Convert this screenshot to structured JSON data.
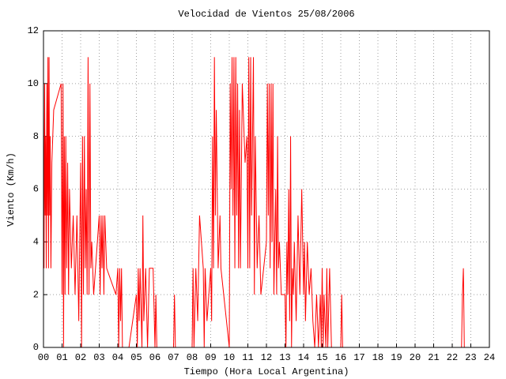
{
  "chart_data": {
    "type": "line",
    "title": "Velocidad de Vientos 25/08/2006",
    "xlabel": "Tiempo (Hora Local Argentina)",
    "ylabel": "Viento (Km/h)",
    "xlim": [
      0,
      24
    ],
    "ylim": [
      0,
      12
    ],
    "xticks": [
      {
        "value": 0,
        "label": "00"
      },
      {
        "value": 1,
        "label": "01"
      },
      {
        "value": 2,
        "label": "02"
      },
      {
        "value": 3,
        "label": "03"
      },
      {
        "value": 4,
        "label": "04"
      },
      {
        "value": 5,
        "label": "05"
      },
      {
        "value": 6,
        "label": "06"
      },
      {
        "value": 7,
        "label": "07"
      },
      {
        "value": 8,
        "label": "08"
      },
      {
        "value": 9,
        "label": "09"
      },
      10,
      11,
      12,
      13,
      14,
      15,
      16,
      17,
      18,
      19,
      20,
      21,
      22,
      23,
      24
    ],
    "yticks": [
      0,
      2,
      4,
      6,
      8,
      10,
      12
    ],
    "grid": true,
    "series": [
      {
        "color": "#ff0000",
        "x": [
          0.0,
          0.03,
          0.06,
          0.09,
          0.12,
          0.15,
          0.18,
          0.21,
          0.24,
          0.27,
          0.3,
          0.33,
          0.36,
          0.4,
          0.45,
          0.55,
          0.95,
          1.0,
          1.05,
          1.08,
          1.12,
          1.16,
          1.2,
          1.25,
          1.3,
          1.35,
          1.4,
          1.5,
          1.6,
          1.7,
          1.8,
          1.9,
          2.0,
          2.05,
          2.1,
          2.15,
          2.2,
          2.25,
          2.3,
          2.35,
          2.4,
          2.45,
          2.5,
          2.55,
          2.6,
          2.7,
          2.8,
          3.0,
          3.05,
          3.1,
          3.15,
          3.2,
          3.25,
          3.3,
          3.4,
          3.9,
          4.0,
          4.05,
          4.1,
          4.15,
          4.2,
          4.25,
          4.6,
          5.0,
          5.05,
          5.1,
          5.15,
          5.2,
          5.3,
          5.35,
          5.4,
          5.5,
          5.6,
          5.7,
          5.9,
          6.0,
          6.05,
          6.1,
          7.0,
          7.05,
          7.1,
          8.0,
          8.05,
          8.1,
          8.2,
          8.3,
          8.4,
          8.6,
          8.65,
          8.7,
          8.8,
          9.0,
          9.05,
          9.1,
          9.15,
          9.2,
          9.25,
          9.3,
          9.4,
          9.5,
          9.55,
          10.0,
          10.05,
          10.1,
          10.15,
          10.2,
          10.25,
          10.3,
          10.35,
          10.4,
          10.45,
          10.5,
          10.55,
          10.6,
          10.7,
          10.85,
          10.95,
          11.0,
          11.05,
          11.1,
          11.15,
          11.2,
          11.3,
          11.35,
          11.4,
          11.5,
          11.6,
          11.7,
          12.0,
          12.05,
          12.1,
          12.15,
          12.2,
          12.25,
          12.3,
          12.35,
          12.4,
          12.5,
          12.55,
          12.6,
          12.65,
          12.7,
          12.8,
          13.0,
          13.05,
          13.1,
          13.15,
          13.2,
          13.25,
          13.3,
          13.35,
          13.4,
          13.45,
          13.5,
          13.6,
          13.7,
          13.8,
          13.9,
          14.0,
          14.05,
          14.1,
          14.2,
          14.3,
          14.4,
          14.5,
          14.6,
          14.7,
          14.8,
          14.9,
          14.95,
          15.0,
          15.05,
          15.1,
          15.2,
          15.25,
          15.3,
          15.4,
          15.5,
          16.0,
          16.05,
          16.1,
          22.5,
          22.55,
          22.6,
          22.65
        ],
        "values": [
          9,
          3,
          10,
          5,
          8,
          3,
          10,
          5,
          11,
          3,
          11,
          5,
          8,
          3,
          7,
          9,
          10,
          2,
          10,
          0,
          8,
          2,
          8,
          3,
          7,
          2,
          6,
          3,
          5,
          2,
          5,
          1,
          7,
          0,
          8,
          2,
          8,
          3,
          6,
          2,
          11,
          2,
          10,
          3,
          4,
          2,
          3,
          5,
          2,
          5,
          3,
          5,
          2,
          5,
          3,
          2,
          3,
          0,
          3,
          1,
          3,
          0,
          0,
          2,
          0,
          3,
          1,
          3,
          0,
          5,
          1,
          3,
          0,
          3,
          3,
          0,
          2,
          0,
          0,
          2,
          0,
          0,
          3,
          0,
          3,
          1,
          5,
          3,
          0,
          3,
          1,
          3,
          1,
          8,
          3,
          11,
          5,
          9,
          3,
          5,
          3,
          0,
          10,
          6,
          11,
          5,
          11,
          3,
          11,
          5,
          10,
          3,
          9,
          3,
          10,
          7,
          8,
          3,
          11,
          3,
          11,
          5,
          11,
          2,
          8,
          3,
          5,
          2,
          4,
          10,
          5,
          10,
          3,
          10,
          4,
          10,
          2,
          6,
          2,
          8,
          3,
          4,
          2,
          2,
          0,
          4,
          2,
          6,
          1,
          8,
          0,
          3,
          2,
          4,
          1,
          5,
          2,
          6,
          2,
          4,
          1,
          4,
          2,
          3,
          1,
          0,
          2,
          0,
          2,
          0,
          3,
          0,
          2,
          0,
          3,
          0,
          3,
          0,
          0,
          2,
          0,
          0,
          2,
          3,
          0
        ]
      }
    ]
  }
}
